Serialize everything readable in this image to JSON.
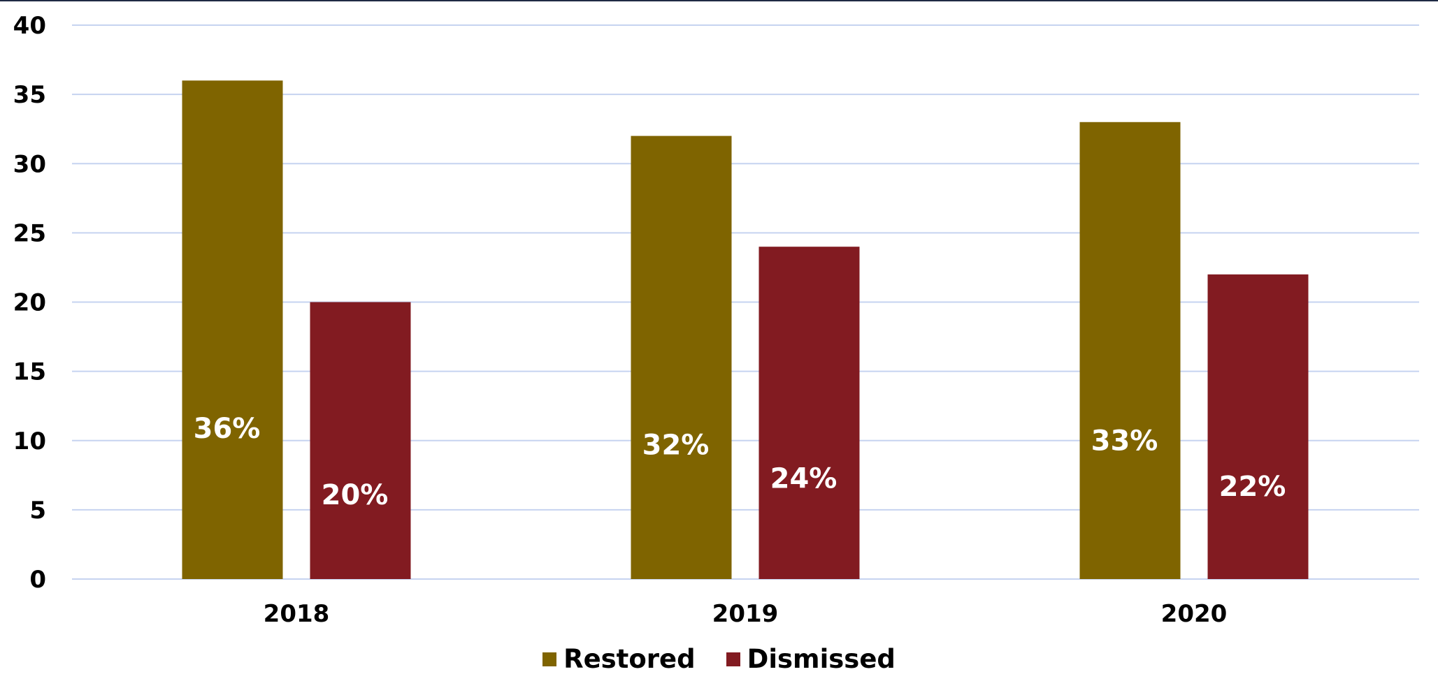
{
  "chart_data": {
    "type": "bar",
    "categories": [
      "2018",
      "2019",
      "2020"
    ],
    "series": [
      {
        "name": "Restored",
        "values": [
          36,
          32,
          33
        ],
        "labels": [
          "36%",
          "32%",
          "33%"
        ],
        "color": "#7f6400"
      },
      {
        "name": "Dismissed",
        "values": [
          20,
          24,
          22
        ],
        "labels": [
          "20%",
          "24%",
          "22%"
        ],
        "color": "#821b21"
      }
    ],
    "ylim": [
      0,
      40
    ],
    "yticks": [
      "0",
      "5",
      "10",
      "15",
      "20",
      "25",
      "30",
      "35",
      "40"
    ],
    "grid": true,
    "gridline_color": "#c6d3f0",
    "legend_position": "bottom"
  }
}
